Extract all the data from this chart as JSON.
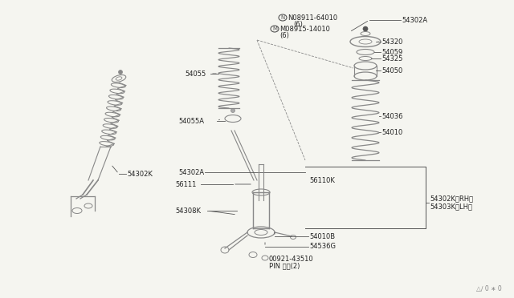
{
  "bg_color": "#f5f5f0",
  "line_color": "#444444",
  "text_color": "#222222",
  "gray": "#888888",
  "darkgray": "#555555",
  "font_size": 6.0,
  "parts": {
    "N_label": "N08911-64010",
    "N_sub": "(6)",
    "M_label": "M08915-14010",
    "M_sub": "(6)",
    "p54302A": "54302A",
    "p54320": "54320",
    "p54059": "54059",
    "p54325": "54325",
    "p54050": "54050",
    "p54036": "54036",
    "p54010": "54010",
    "p54055": "54055",
    "p54055A": "54055A",
    "p56111": "56111",
    "p54302A_low": "54302A",
    "p56110K": "56110K",
    "p54308K": "54308K",
    "p54302K_label": "54302K",
    "p54302K_rh": "54302K（RH）",
    "p54303K_lh": "54303K（LH）",
    "p54010B": "54010B",
    "p54536G": "54536G",
    "pin_label": "00921-43510",
    "pin_sub": "PIN ピン(2)",
    "watermark": "△∕ 0 ∗ 0"
  }
}
